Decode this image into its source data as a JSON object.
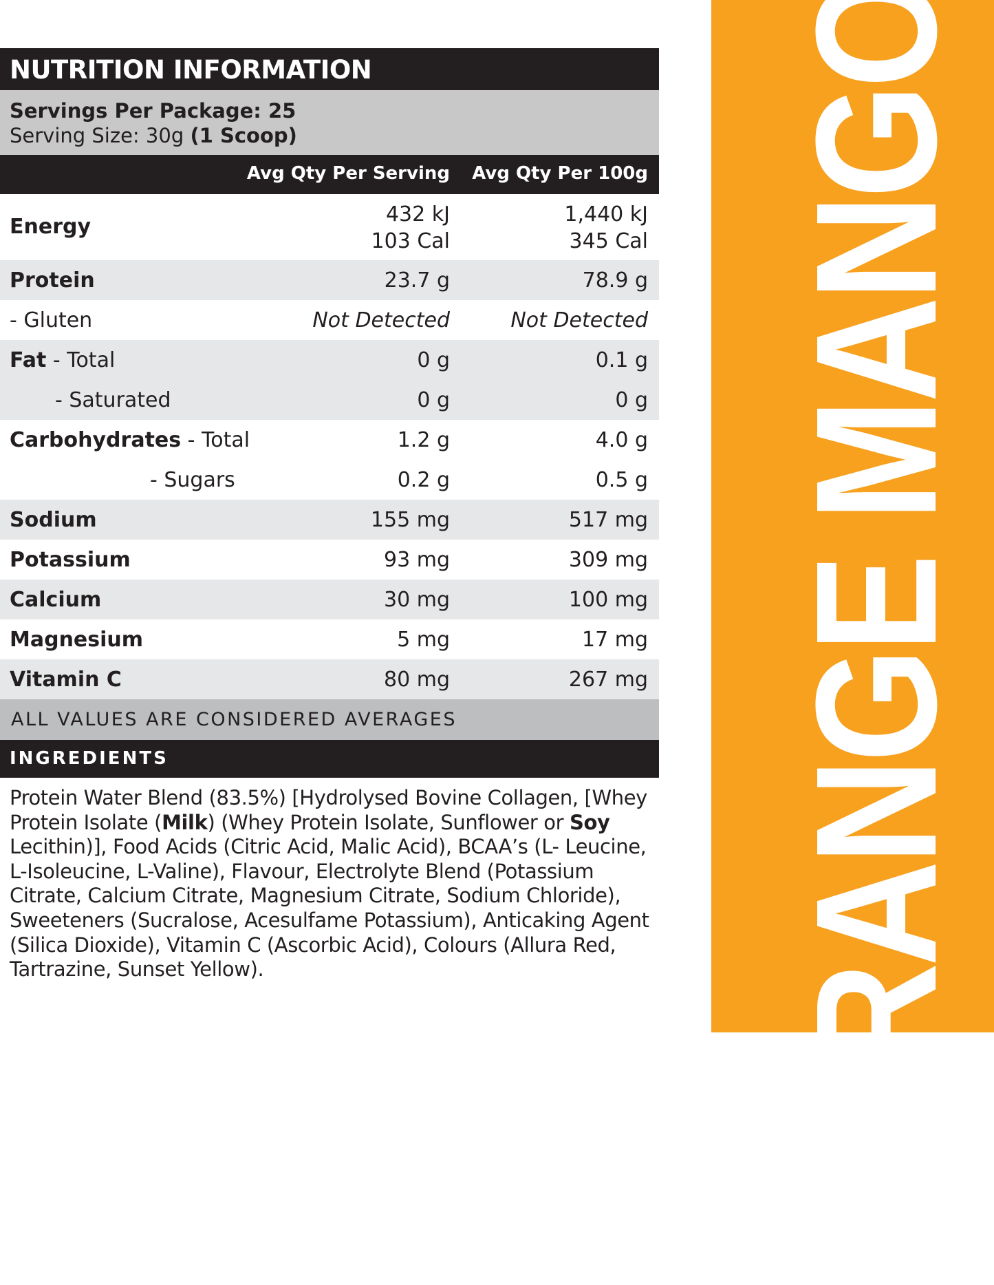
{
  "title": "NUTRITION INFORMATION",
  "servings": {
    "per_package": "Servings Per Package: 25",
    "size_prefix": "Serving Size: 30g ",
    "size_bold": "(1 Scoop)"
  },
  "columns": {
    "serving": "Avg Qty Per Serving",
    "per100": "Avg Qty Per 100g"
  },
  "rows": [
    {
      "name": "Energy",
      "a": "432 kJ\n103 Cal",
      "b": "1,440 kJ\n345 Cal"
    },
    {
      "name": "Protein",
      "a": "23.7 g",
      "b": "78.9 g"
    },
    {
      "name": "- Gluten",
      "a": "Not Detected",
      "b": "Not Detected"
    },
    {
      "name": "Fat",
      "suffix": " - Total",
      "a": "0 g",
      "b": "0.1 g"
    },
    {
      "name": "- Saturated",
      "a": "0 g",
      "b": "0 g"
    },
    {
      "name": "Carbohydrates",
      "suffix": " - Total",
      "a": "1.2 g",
      "b": "4.0 g"
    },
    {
      "name": "- Sugars",
      "a": "0.2 g",
      "b": "0.5 g"
    },
    {
      "name": "Sodium",
      "a": "155 mg",
      "b": "517 mg"
    },
    {
      "name": "Potassium",
      "a": "93 mg",
      "b": "309 mg"
    },
    {
      "name": "Calcium",
      "a": "30 mg",
      "b": "100 mg"
    },
    {
      "name": "Magnesium",
      "a": "5 mg",
      "b": "17 mg"
    },
    {
      "name": "Vitamin C",
      "a": "80 mg",
      "b": "267 mg"
    }
  ],
  "averages_note": "ALL VALUES ARE CONSIDERED AVERAGES",
  "ingredients_title": "INGREDIENTS",
  "ingredients": {
    "p1": "Protein Water Blend (83.5%) [Hydrolysed Bovine Collagen, [Whey Protein Isolate (",
    "milk": "Milk",
    "p2": ") (Whey Protein Isolate, Sunflower or ",
    "soy": "Soy",
    "p3": " Lecithin)], Food Acids (Citric Acid, Malic Acid), BCAA’s (L- Leucine, L-Isoleucine, L-Valine), Flavour, Electrolyte Blend (Potassium Citrate, Calcium Citrate, Magnesium Citrate, Sodium Chloride), Sweeteners (Sucralose, Acesulfame Potassium), Anticaking Agent (Silica Dioxide), Vitamin C (Ascorbic Acid), Colours (Allura Red, Tartrazine, Sunset Yellow)."
  },
  "flavor": "ORANGE MANGO",
  "colors": {
    "accent": "#f7a11f",
    "dark": "#231f20",
    "row_gray": "#e6e7e8"
  }
}
